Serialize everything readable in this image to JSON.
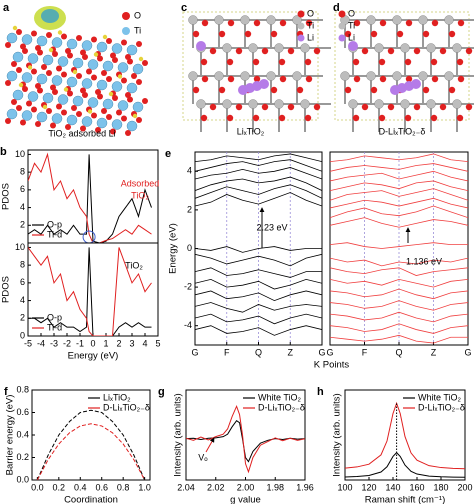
{
  "structures": [
    {
      "label": "a",
      "caption": "TiO₂ adsorbed Li",
      "legend": [
        {
          "name": "O",
          "color": "#e02020"
        },
        {
          "name": "Ti",
          "color": "#7cc2ea"
        }
      ]
    },
    {
      "label": "c",
      "caption": "LiₓTiO₂",
      "legend": [
        {
          "name": "O",
          "color": "#e02020"
        },
        {
          "name": "Ti",
          "color": "#bdbdbd"
        },
        {
          "name": "Li",
          "color": "#b57be8"
        }
      ]
    },
    {
      "label": "d",
      "caption": "D-LiₓTiO₂₋δ",
      "legend": [
        {
          "name": "O",
          "color": "#e02020"
        },
        {
          "name": "Ti",
          "color": "#bdbdbd"
        },
        {
          "name": "Li",
          "color": "#b57be8"
        }
      ]
    }
  ],
  "chart_data": [
    {
      "type": "line",
      "label": "b",
      "ylabel": "PDOS",
      "annotations": [
        "Adsorbed",
        "TiO₂"
      ],
      "legend": "lower left",
      "xlim": [
        -5,
        5
      ],
      "ylim": [
        0,
        10.5
      ],
      "yticks": [
        2,
        4,
        6,
        8,
        10
      ],
      "x": [
        -5,
        -4.5,
        -4,
        -3.5,
        -3,
        -2.5,
        -2,
        -1.5,
        -1,
        -0.5,
        -0.3,
        0,
        0.5,
        1,
        1.5,
        2,
        2.5,
        3,
        3.5,
        4,
        4.5
      ],
      "series": [
        {
          "name": "O-p",
          "color": "#000000",
          "values": [
            1,
            1.5,
            1,
            2,
            1,
            1.5,
            1,
            2,
            1,
            1,
            10,
            0.2,
            0,
            0.2,
            1,
            3,
            4,
            5,
            3,
            6,
            4
          ]
        },
        {
          "name": "Ti-d",
          "color": "#e02020",
          "values": [
            7,
            9,
            8,
            10,
            6,
            7,
            5,
            6,
            4,
            3,
            1,
            0,
            0,
            0.3,
            0.5,
            1,
            1.5,
            1,
            2,
            1.5,
            1
          ]
        }
      ]
    },
    {
      "type": "line",
      "ylabel": "PDOS",
      "xlabel": "Energy (eV)",
      "annotations": [
        "TiO₂"
      ],
      "legend": "lower left",
      "xlim": [
        -5,
        5
      ],
      "ylim": [
        0,
        10.5
      ],
      "xticks": [
        -5,
        -4,
        -3,
        -2,
        -1,
        0,
        1,
        2,
        3,
        4,
        5
      ],
      "yticks": [
        0,
        2,
        4,
        6,
        8,
        10
      ],
      "x": [
        -5,
        -4.5,
        -4,
        -3.5,
        -3,
        -2.5,
        -2,
        -1.5,
        -1,
        -0.5,
        -0.3,
        0,
        0.5,
        1,
        1.5,
        2,
        2.5,
        3,
        3.5,
        4,
        4.5
      ],
      "series": [
        {
          "name": "O-p",
          "color": "#000000",
          "values": [
            2,
            2,
            1.5,
            2,
            1,
            1.5,
            1,
            1,
            0.5,
            1,
            10,
            0,
            0,
            0,
            0,
            1,
            1.5,
            1,
            1.5,
            1,
            1
          ]
        },
        {
          "name": "Ti-d",
          "color": "#e02020",
          "values": [
            10,
            9,
            8,
            9,
            6,
            7,
            4,
            5,
            3,
            2,
            0.5,
            0,
            0,
            0,
            0,
            10,
            8,
            6,
            7,
            5,
            6
          ]
        }
      ]
    },
    {
      "type": "line",
      "label": "e",
      "ylabel": "Energy (eV)",
      "xlabel": "K Points",
      "annotations": [
        "2.23 eV"
      ],
      "color": "#000000",
      "grid": true,
      "grid_color": "#9b8fd8",
      "xlim": [
        0,
        4
      ],
      "ylim": [
        -5,
        5
      ],
      "yticks": [
        -4,
        -2,
        0,
        2,
        4
      ],
      "xticks": [
        {
          "value": 0,
          "label": "G"
        },
        {
          "value": 1,
          "label": "F"
        },
        {
          "value": 2,
          "label": "Q"
        },
        {
          "value": 3,
          "label": "Z"
        },
        {
          "value": 4,
          "label": "G"
        }
      ],
      "x": [
        0,
        0.5,
        1,
        1.5,
        2,
        2.5,
        3,
        3.5,
        4
      ],
      "series": [
        {
          "values": [
            2.2,
            2.4,
            2.8,
            2.5,
            2.3,
            2.6,
            2.9,
            2.5,
            2.2
          ]
        },
        {
          "values": [
            2.6,
            2.9,
            3.2,
            3.0,
            2.8,
            3.1,
            3.3,
            3.0,
            2.6
          ]
        },
        {
          "values": [
            3.0,
            3.3,
            3.5,
            3.6,
            3.4,
            3.5,
            3.7,
            3.4,
            3.0
          ]
        },
        {
          "values": [
            3.6,
            3.8,
            3.9,
            4.1,
            3.9,
            4.0,
            4.2,
            3.9,
            3.6
          ]
        },
        {
          "values": [
            4.0,
            4.2,
            4.4,
            4.5,
            4.3,
            4.5,
            4.6,
            4.3,
            4.0
          ]
        },
        {
          "values": [
            4.5,
            4.6,
            4.8,
            4.7,
            4.6,
            4.8,
            4.9,
            4.7,
            4.5
          ]
        },
        {
          "values": [
            0,
            -0.1,
            0.1,
            -0.2,
            0,
            0.1,
            -0.1,
            0,
            0
          ]
        },
        {
          "values": [
            -0.3,
            -0.5,
            -0.8,
            -0.6,
            -0.4,
            -0.6,
            -0.9,
            -0.5,
            -0.3
          ]
        },
        {
          "values": [
            -1.2,
            -1.0,
            -1.4,
            -1.3,
            -1.1,
            -1.3,
            -1.5,
            -1.2,
            -1.2
          ]
        },
        {
          "values": [
            -1.8,
            -1.6,
            -2.0,
            -1.9,
            -1.7,
            -2.1,
            -1.9,
            -1.6,
            -1.8
          ]
        },
        {
          "values": [
            -2.4,
            -2.2,
            -2.6,
            -2.5,
            -2.3,
            -2.7,
            -2.4,
            -2.2,
            -2.4
          ]
        },
        {
          "values": [
            -3.0,
            -2.8,
            -3.1,
            -3.3,
            -2.9,
            -3.2,
            -3.0,
            -2.9,
            -3.0
          ]
        },
        {
          "values": [
            -3.6,
            -3.4,
            -3.8,
            -3.7,
            -3.5,
            -3.9,
            -3.6,
            -3.4,
            -3.6
          ]
        },
        {
          "values": [
            -4.2,
            -4.0,
            -4.4,
            -4.3,
            -4.1,
            -4.5,
            -4.2,
            -4.0,
            -4.2
          ]
        }
      ]
    },
    {
      "type": "line",
      "annotations": [
        "1.136 eV"
      ],
      "color": "#f04040",
      "grid": true,
      "grid_color": "#9b8fd8",
      "xlim": [
        0,
        4
      ],
      "ylim": [
        -5,
        5
      ],
      "xticks": [
        {
          "value": 0,
          "label": "G"
        },
        {
          "value": 1,
          "label": "F"
        },
        {
          "value": 2,
          "label": "Q"
        },
        {
          "value": 3,
          "label": "Z"
        },
        {
          "value": 4,
          "label": "G"
        }
      ],
      "x": [
        0,
        0.5,
        1,
        1.5,
        2,
        2.5,
        3,
        3.5,
        4
      ],
      "series": [
        {
          "values": [
            1.2,
            1.4,
            1.6,
            1.3,
            1.1,
            1.3,
            1.5,
            1.4,
            1.2
          ]
        },
        {
          "values": [
            1.6,
            1.9,
            2.1,
            1.8,
            1.7,
            1.9,
            2.2,
            1.9,
            1.6
          ]
        },
        {
          "values": [
            2.1,
            2.3,
            2.5,
            2.4,
            2.2,
            2.4,
            2.6,
            2.3,
            2.1
          ]
        },
        {
          "values": [
            2.5,
            2.8,
            2.9,
            3.0,
            2.7,
            2.9,
            3.1,
            2.8,
            2.5
          ]
        },
        {
          "values": [
            3.0,
            3.2,
            3.4,
            3.3,
            3.1,
            3.4,
            3.5,
            3.2,
            3.0
          ]
        },
        {
          "values": [
            3.5,
            3.7,
            3.8,
            3.9,
            3.6,
            3.8,
            4.0,
            3.7,
            3.5
          ]
        },
        {
          "values": [
            4.0,
            4.2,
            4.3,
            4.2,
            4.1,
            4.3,
            4.4,
            4.2,
            4.0
          ]
        },
        {
          "values": [
            4.5,
            4.6,
            4.8,
            4.7,
            4.6,
            4.7,
            4.9,
            4.6,
            4.5
          ]
        },
        {
          "values": [
            0.2,
            0.3,
            0.1,
            0.0,
            0.1,
            0.2,
            0.3,
            0.2,
            0.2
          ]
        },
        {
          "values": [
            -0.5,
            -0.7,
            -0.6,
            -0.9,
            -0.7,
            -0.8,
            -0.6,
            -0.7,
            -0.5
          ]
        },
        {
          "values": [
            -1.0,
            -1.2,
            -1.3,
            -1.1,
            -1.0,
            -1.4,
            -1.2,
            -1.1,
            -1.0
          ]
        },
        {
          "values": [
            -1.6,
            -1.8,
            -1.7,
            -1.9,
            -1.6,
            -1.8,
            -2.0,
            -1.7,
            -1.6
          ]
        },
        {
          "values": [
            -2.2,
            -2.3,
            -2.5,
            -2.4,
            -2.1,
            -2.4,
            -2.6,
            -2.3,
            -2.2
          ]
        },
        {
          "values": [
            -2.8,
            -2.9,
            -3.1,
            -3.0,
            -2.7,
            -3.0,
            -3.2,
            -2.9,
            -2.8
          ]
        },
        {
          "values": [
            -3.4,
            -3.5,
            -3.7,
            -3.6,
            -3.3,
            -3.6,
            -3.8,
            -3.5,
            -3.4
          ]
        },
        {
          "values": [
            -4.0,
            -4.1,
            -4.3,
            -4.2,
            -3.9,
            -4.2,
            -4.4,
            -4.1,
            -4.0
          ]
        },
        {
          "values": [
            -4.6,
            -4.7,
            -4.8,
            -4.7,
            -4.5,
            -4.8,
            -4.9,
            -4.6,
            -4.6
          ]
        }
      ]
    },
    {
      "type": "line",
      "label": "f",
      "xlabel": "Coordination",
      "ylabel": "Barrier energy (eV)",
      "legend": "upper right",
      "xlim": [
        -0.05,
        1.05
      ],
      "ylim": [
        0,
        0.8
      ],
      "xticks": [
        {
          "value": 0,
          "label": "0.0"
        },
        0.2,
        0.4,
        0.6,
        0.8,
        {
          "value": 1,
          "label": "1.0"
        }
      ],
      "yticks": [
        {
          "value": 0,
          "label": "0.0"
        },
        0.2,
        0.4,
        0.6,
        0.8
      ],
      "x": [
        0,
        0.1,
        0.2,
        0.3,
        0.4,
        0.5,
        0.6,
        0.7,
        0.8,
        0.9,
        1
      ],
      "series": [
        {
          "name": "LiₓTiO₂",
          "color": "#000000",
          "line_style": "dashed",
          "values": [
            0,
            0.22,
            0.4,
            0.52,
            0.6,
            0.62,
            0.6,
            0.52,
            0.4,
            0.22,
            0
          ]
        },
        {
          "name": "D-LiₓTiO₂₋δ",
          "color": "#e02020",
          "line_style": "dashed",
          "values": [
            0,
            0.18,
            0.32,
            0.42,
            0.48,
            0.5,
            0.48,
            0.42,
            0.32,
            0.18,
            0
          ]
        }
      ]
    },
    {
      "type": "line",
      "label": "g",
      "xlabel": "g value",
      "ylabel": "Intensity (arb. units)",
      "annotations": [
        "Vₒ"
      ],
      "legend": "upper right",
      "xlim": [
        2.04,
        1.96
      ],
      "ylim": [
        -1,
        1.2
      ],
      "xticks": [
        2.04,
        2.02,
        {
          "value": 2,
          "label": "2.00"
        },
        1.98,
        1.96
      ],
      "x": [
        2.04,
        2.035,
        2.03,
        2.025,
        2.02,
        2.015,
        2.012,
        2.009,
        2.006,
        2.004,
        2.002,
        2.0,
        1.998,
        1.995,
        1.99,
        1.985,
        1.98,
        1.975,
        1.97,
        1.965,
        1.96
      ],
      "series": [
        {
          "name": "White TiO₂",
          "color": "#000000",
          "values": [
            0.01,
            0.02,
            -0.01,
            0.02,
            0.03,
            0.06,
            0.12,
            0.3,
            0.45,
            0.4,
            0.0,
            -0.45,
            -0.55,
            -0.3,
            -0.1,
            -0.03,
            0.01,
            -0.01,
            0.02,
            0,
            0.01
          ]
        },
        {
          "name": "D-LiₓTiO₂₋δ",
          "color": "#e02020",
          "values": [
            0.02,
            -0.03,
            0.05,
            -0.02,
            0.06,
            0.12,
            0.25,
            0.55,
            0.8,
            0.6,
            0.1,
            -0.6,
            -0.8,
            -0.45,
            -0.15,
            -0.06,
            0.03,
            -0.04,
            0.02,
            -0.03,
            0.01
          ]
        }
      ]
    },
    {
      "type": "line",
      "label": "h",
      "xlabel": "Raman shift (cm⁻¹)",
      "ylabel": "Intensity (arb. units)",
      "legend": "upper right",
      "xlim": [
        100,
        200
      ],
      "ylim": [
        0,
        11.5
      ],
      "xticks": [
        100,
        120,
        140,
        160,
        180,
        200
      ],
      "x": [
        100,
        110,
        120,
        130,
        135,
        140,
        143,
        146,
        150,
        155,
        160,
        170,
        180,
        190,
        200
      ],
      "series": [
        {
          "name": "White TiO₂",
          "color": "#000000",
          "values": [
            0.38,
            0.44,
            0.57,
            1.02,
            1.69,
            3.01,
            3.5,
            3.01,
            1.9,
            1.11,
            0.76,
            0.5,
            0.41,
            0.37,
            0.35
          ]
        },
        {
          "name": "D-LiₓTiO₂₋δ",
          "color": "#e02020",
          "values": [
            1.52,
            1.67,
            2.02,
            3.21,
            4.98,
            8.5,
            9.8,
            8.5,
            5.55,
            3.46,
            2.53,
            1.83,
            1.59,
            1.48,
            1.43
          ]
        }
      ]
    }
  ]
}
